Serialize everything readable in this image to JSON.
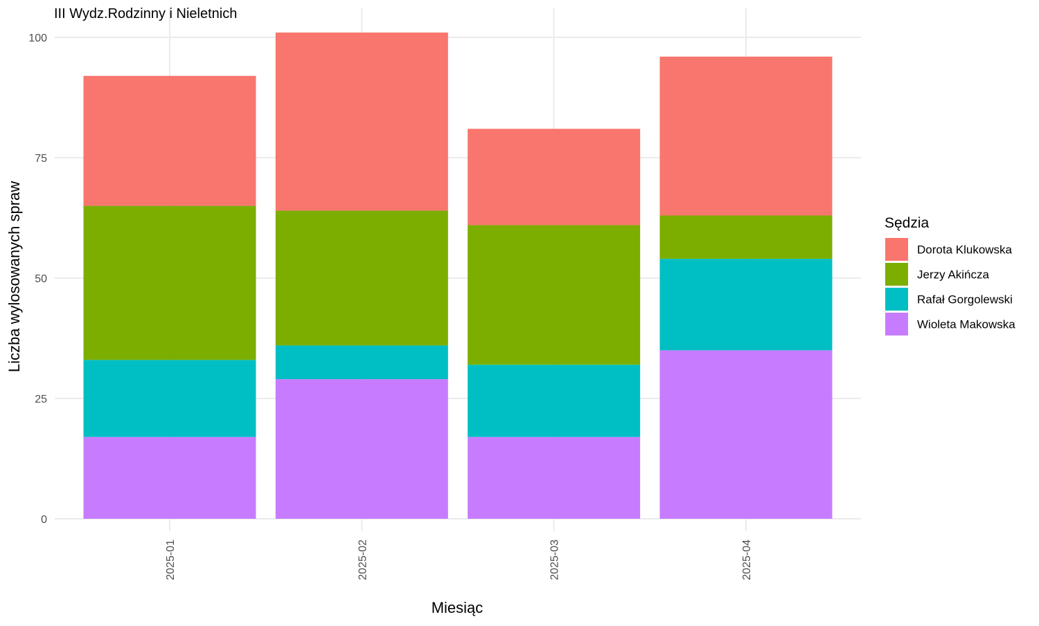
{
  "chart_data": {
    "type": "bar",
    "stacked": true,
    "title": "III Wydz.Rodzinny i Nieletnich",
    "xlabel": "Miesiąc",
    "ylabel": "Liczba wylosowanych spraw",
    "ylim": [
      0,
      105
    ],
    "y_ticks": [
      0,
      25,
      50,
      75,
      100
    ],
    "grid": true,
    "categories": [
      "2025-01",
      "2025-02",
      "2025-03",
      "2025-04"
    ],
    "legend": {
      "title": "Sędzia",
      "position": "right"
    },
    "series": [
      {
        "name": "Dorota Klukowska",
        "color": "#F8766D",
        "values": [
          27,
          37,
          20,
          33
        ]
      },
      {
        "name": "Jerzy Akińcza",
        "color": "#7CAE00",
        "values": [
          32,
          28,
          29,
          9
        ]
      },
      {
        "name": "Rafał Gorgolewski",
        "color": "#00BFC4",
        "values": [
          16,
          7,
          15,
          19
        ]
      },
      {
        "name": "Wioleta Makowska",
        "color": "#C77CFF",
        "values": [
          17,
          29,
          17,
          35
        ]
      }
    ]
  }
}
